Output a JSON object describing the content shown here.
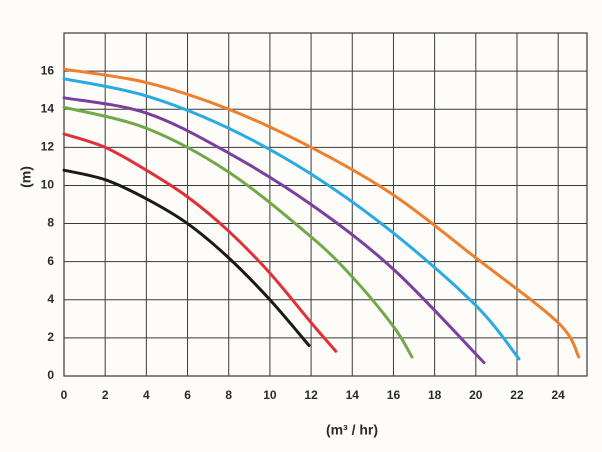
{
  "chart_data": {
    "type": "line",
    "x_label": "(m³ / hr)",
    "y_label": "(m)",
    "xlim": [
      0,
      25.4
    ],
    "ylim": [
      0,
      18
    ],
    "xticks": [
      0,
      2,
      4,
      6,
      8,
      10,
      12,
      14,
      16,
      18,
      20,
      22,
      24
    ],
    "yticks": [
      0,
      2,
      4,
      6,
      8,
      10,
      12,
      14,
      16
    ],
    "grid": true,
    "series": [
      {
        "color": "#ee7f2d",
        "x": [
          0,
          4,
          8,
          12,
          16,
          20,
          24,
          25
        ],
        "values": [
          16.1,
          15.4,
          14.0,
          12.0,
          9.5,
          6.2,
          2.8,
          1.0
        ]
      },
      {
        "color": "#29abe2",
        "x": [
          0,
          4,
          8,
          12,
          16,
          20,
          22.1
        ],
        "values": [
          15.6,
          14.7,
          13.0,
          10.6,
          7.5,
          3.7,
          0.9
        ]
      },
      {
        "color": "#7b3f9e",
        "x": [
          0,
          4,
          8,
          12,
          16,
          20.4
        ],
        "values": [
          14.6,
          13.8,
          11.7,
          9.0,
          5.6,
          0.7
        ]
      },
      {
        "color": "#72a84a",
        "x": [
          0,
          4,
          8,
          12,
          14,
          16,
          16.9
        ],
        "values": [
          14.1,
          13.0,
          10.7,
          7.3,
          5.2,
          2.6,
          1.0
        ]
      },
      {
        "color": "#e0313a",
        "x": [
          0,
          2,
          4,
          6,
          8,
          10,
          12,
          13.2
        ],
        "values": [
          12.7,
          12.0,
          10.8,
          9.4,
          7.6,
          5.4,
          2.8,
          1.3
        ]
      },
      {
        "color": "#1a1a1a",
        "x": [
          0,
          2,
          4,
          6,
          8,
          10,
          11.9
        ],
        "values": [
          10.8,
          10.3,
          9.3,
          8.0,
          6.2,
          4.0,
          1.6
        ]
      }
    ]
  }
}
